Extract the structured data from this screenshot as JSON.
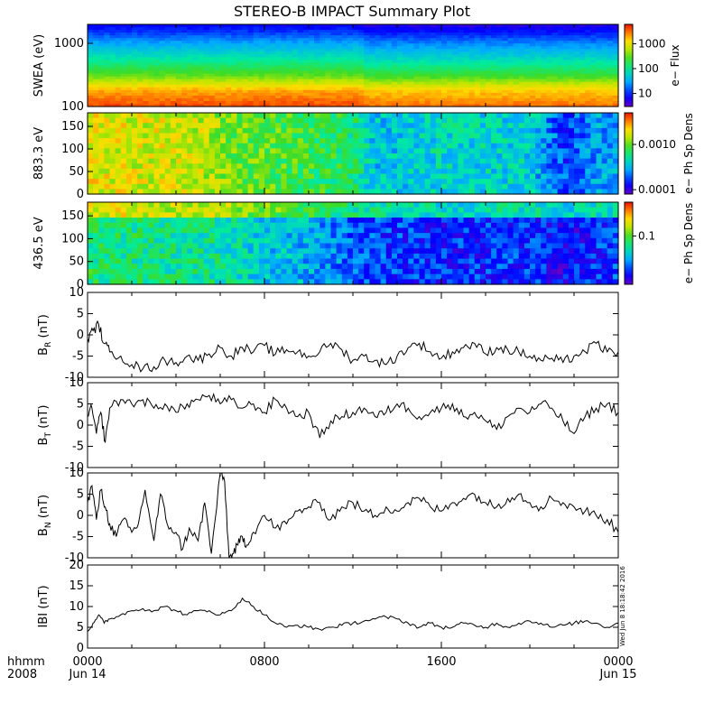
{
  "title": "STEREO-B IMPACT Summary Plot",
  "timestamp_vertical": "Wed Jun  8 18:18:42 2016",
  "x_axis": {
    "label_lines": [
      "hhmm",
      "2008"
    ],
    "ticks": [
      {
        "value_hours": 0,
        "line1": "0000",
        "line2": "Jun 14"
      },
      {
        "value_hours": 8,
        "line1": "0800",
        "line2": ""
      },
      {
        "value_hours": 16,
        "line1": "1600",
        "line2": ""
      },
      {
        "value_hours": 24,
        "line1": "0000",
        "line2": "Jun 15"
      }
    ],
    "range_hours": [
      0,
      24
    ]
  },
  "colors": {
    "axis": "#000000",
    "line": "#000000"
  },
  "chart_data": [
    {
      "type": "heatmap",
      "ylabel": "SWEA (eV)",
      "yscale": "log",
      "ylim": [
        100,
        2000
      ],
      "yticks": [
        {
          "value": 100,
          "label": "100"
        },
        {
          "value": 1000,
          "label": "1000"
        }
      ],
      "colorbar": {
        "label": "e− Flux",
        "scale": "log",
        "ticks": [
          {
            "value": 10,
            "label": "10"
          },
          {
            "value": 100,
            "label": "100"
          },
          {
            "value": 1000,
            "label": "1000"
          }
        ],
        "range": [
          3,
          6000
        ]
      },
      "description_profile": [
        {
          "energy_eV": 100,
          "level": 0.95
        },
        {
          "energy_eV": 180,
          "level": 0.85
        },
        {
          "energy_eV": 300,
          "level": 0.62
        },
        {
          "energy_eV": 550,
          "level": 0.45
        },
        {
          "energy_eV": 1000,
          "level": 0.3
        },
        {
          "energy_eV": 1500,
          "level": 0.18
        },
        {
          "energy_eV": 2000,
          "level": 0.1
        }
      ]
    },
    {
      "type": "heatmap",
      "ylabel": "883.3 eV",
      "ylim": [
        0,
        180
      ],
      "yticks": [
        {
          "value": 0,
          "label": "0"
        },
        {
          "value": 50,
          "label": "50"
        },
        {
          "value": 100,
          "label": "100"
        },
        {
          "value": 150,
          "label": "150"
        }
      ],
      "colorbar": {
        "label": "e− Ph Sp Dens",
        "scale": "log",
        "ticks": [
          {
            "value": 0.0001,
            "label": "0.0001"
          },
          {
            "value": 0.001,
            "label": "0.0010"
          }
        ],
        "range": [
          8e-05,
          0.005
        ]
      },
      "time_level_hours": [
        [
          0,
          0.75
        ],
        [
          5,
          0.72
        ],
        [
          6.5,
          0.62
        ],
        [
          10,
          0.55
        ],
        [
          12,
          0.5
        ],
        [
          13,
          0.35
        ],
        [
          16,
          0.4
        ],
        [
          20,
          0.38
        ],
        [
          21.5,
          0.18
        ],
        [
          23,
          0.3
        ],
        [
          24,
          0.3
        ]
      ]
    },
    {
      "type": "heatmap",
      "ylabel": "436.5 eV",
      "ylim": [
        0,
        180
      ],
      "yticks": [
        {
          "value": 0,
          "label": "0"
        },
        {
          "value": 50,
          "label": "50"
        },
        {
          "value": 100,
          "label": "100"
        },
        {
          "value": 150,
          "label": "150"
        }
      ],
      "colorbar": {
        "label": "e− Ph Sp Dens",
        "scale": "log",
        "ticks": [
          {
            "value": 0.1,
            "label": "0.1"
          }
        ],
        "range": [
          0.01,
          0.5
        ]
      },
      "time_level_hours": [
        [
          0,
          0.5
        ],
        [
          6,
          0.45
        ],
        [
          7.5,
          0.38
        ],
        [
          10,
          0.32
        ],
        [
          12.5,
          0.2
        ],
        [
          16,
          0.15
        ],
        [
          20,
          0.18
        ],
        [
          21.5,
          0.1
        ],
        [
          24,
          0.2
        ]
      ]
    },
    {
      "type": "line",
      "ylabel": "B",
      "ylabel_sub": "R",
      "ylabel_unit": " (nT)",
      "ylim": [
        -10,
        10
      ],
      "yticks": [
        -10,
        -5,
        0,
        5,
        10
      ],
      "x": [
        0,
        0.25,
        0.5,
        0.75,
        1,
        1.5,
        2,
        2.5,
        3,
        3.5,
        4,
        4.5,
        5,
        5.5,
        6,
        6.5,
        7,
        7.5,
        8,
        8.5,
        9,
        9.5,
        10,
        10.5,
        11,
        11.5,
        12,
        12.5,
        13,
        13.5,
        14,
        14.5,
        15,
        15.5,
        16,
        16.5,
        17,
        17.5,
        18,
        18.5,
        19,
        19.5,
        20,
        20.5,
        21,
        21.5,
        22,
        22.5,
        23,
        23.5,
        24
      ],
      "y": [
        -1,
        1,
        2.5,
        -2,
        -4,
        -5,
        -7,
        -8,
        -7.5,
        -6,
        -6.5,
        -5,
        -6,
        -4.5,
        -3,
        -5,
        -3,
        -4,
        -2.5,
        -4.5,
        -3.5,
        -4,
        -5,
        -4,
        -2,
        -3.5,
        -6,
        -5,
        -6,
        -7,
        -5,
        -3,
        -2,
        -4,
        -5.5,
        -4,
        -3,
        -2,
        -4.5,
        -3,
        -3.5,
        -4,
        -5,
        -6,
        -5.5,
        -6.5,
        -5,
        -4,
        -2,
        -4,
        -4
      ]
    },
    {
      "type": "line",
      "ylabel": "B",
      "ylabel_sub": "T",
      "ylabel_unit": " (nT)",
      "ylim": [
        -10,
        10
      ],
      "yticks": [
        -10,
        -5,
        0,
        5,
        10
      ],
      "x": [
        0,
        0.2,
        0.4,
        0.6,
        0.8,
        1,
        1.5,
        2,
        2.5,
        3,
        3.5,
        4,
        4.5,
        5,
        5.5,
        6,
        6.5,
        7,
        7.5,
        8,
        8.5,
        9,
        9.5,
        10,
        10.5,
        11,
        11.5,
        12,
        12.5,
        13,
        13.5,
        14,
        14.5,
        15,
        15.5,
        16,
        16.5,
        17,
        17.5,
        18,
        18.5,
        19,
        19.5,
        20,
        20.5,
        21,
        21.5,
        22,
        22.5,
        23,
        23.5,
        24
      ],
      "y": [
        2,
        4,
        -2,
        3,
        -4,
        4,
        6,
        5,
        6,
        4,
        5,
        3,
        5,
        6,
        7,
        5,
        6,
        4,
        5,
        3,
        6,
        4,
        2,
        3,
        -3,
        1,
        2,
        3,
        4,
        2,
        3,
        5,
        4,
        2,
        3,
        4,
        5,
        2,
        3,
        1,
        -1,
        2,
        4,
        3,
        5,
        4,
        1,
        -2,
        2,
        4,
        5,
        3
      ]
    },
    {
      "type": "line",
      "ylabel": "B",
      "ylabel_sub": "N",
      "ylabel_unit": " (nT)",
      "ylim": [
        -10,
        10
      ],
      "yticks": [
        -10,
        -5,
        0,
        5,
        10
      ],
      "x": [
        0,
        0.2,
        0.4,
        0.6,
        0.8,
        1,
        1.3,
        1.6,
        2,
        2.3,
        2.6,
        3,
        3.3,
        3.6,
        4,
        4.3,
        4.6,
        5,
        5.3,
        5.6,
        6,
        6.2,
        6.4,
        6.6,
        6.8,
        7,
        7.2,
        7.5,
        8,
        8.5,
        9,
        9.5,
        10,
        10.5,
        11,
        11.5,
        12,
        12.5,
        13,
        13.5,
        14,
        14.5,
        15,
        15.5,
        16,
        16.5,
        17,
        17.5,
        18,
        18.5,
        19,
        19.5,
        20,
        20.5,
        21,
        21.5,
        22,
        22.5,
        23,
        23.5,
        24
      ],
      "y": [
        3,
        7,
        -1,
        6,
        2,
        -2,
        -5,
        -1,
        -4,
        -2,
        6,
        -6,
        5,
        -2,
        -4,
        -8,
        -3,
        -6,
        3,
        -9,
        10,
        8,
        -10,
        -9,
        -7,
        -5,
        -7,
        -4,
        0,
        -3,
        -2,
        1,
        2,
        3,
        -1,
        2,
        3,
        1,
        0,
        2,
        1,
        3,
        4,
        2,
        1,
        3,
        4,
        5,
        3,
        2,
        4,
        5,
        3,
        2,
        4,
        3,
        2,
        1,
        0,
        -1,
        -4
      ]
    },
    {
      "type": "line",
      "ylabel": "IBI",
      "ylabel_sub": "",
      "ylabel_unit": " (nT)",
      "ylim": [
        0,
        20
      ],
      "yticks": [
        0,
        5,
        10,
        15,
        20
      ],
      "x": [
        0,
        0.25,
        0.5,
        0.75,
        1,
        1.5,
        2,
        2.5,
        3,
        3.5,
        4,
        4.5,
        5,
        5.5,
        6,
        6.5,
        7,
        7.5,
        8,
        8.5,
        9,
        9.5,
        10,
        10.5,
        11,
        11.5,
        12,
        12.5,
        13,
        13.5,
        14,
        14.5,
        15,
        15.5,
        16,
        16.5,
        17,
        17.5,
        18,
        18.5,
        19,
        19.5,
        20,
        20.5,
        21,
        21.5,
        22,
        22.5,
        23,
        23.5,
        24
      ],
      "y": [
        4,
        6,
        8,
        6,
        7,
        8,
        9,
        9.5,
        9,
        10,
        9,
        8,
        9,
        9,
        8,
        9,
        12,
        10,
        8,
        6,
        5,
        5.5,
        5,
        4.5,
        5,
        5.5,
        6,
        6.5,
        7,
        7.5,
        7,
        6,
        5,
        6,
        5,
        5,
        6,
        5.5,
        5,
        6,
        5,
        6,
        6.5,
        6,
        5,
        5.5,
        6,
        6.5,
        6,
        5,
        6
      ]
    }
  ]
}
